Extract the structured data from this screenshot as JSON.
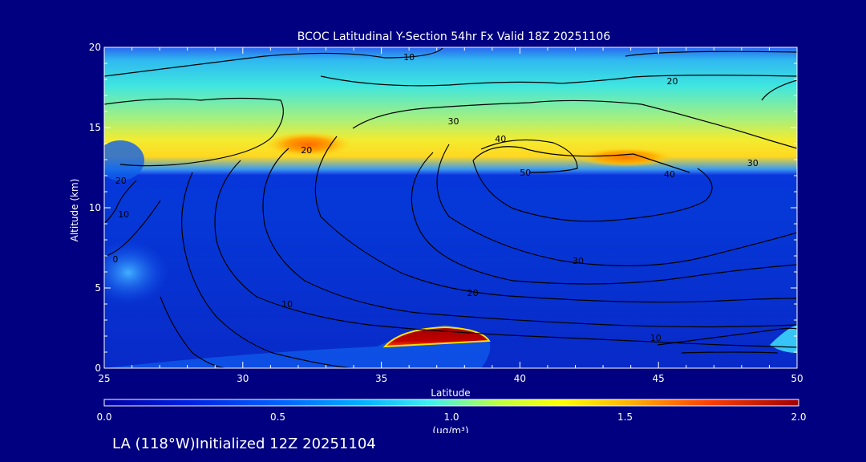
{
  "chart_data": {
    "type": "heatmap",
    "title": "BCOC Latitudinal Y-Section 54hr  Fx Valid 18Z 20251106",
    "xlabel": "Latitude",
    "ylabel": "Altitude (km)",
    "xlim": [
      25,
      50
    ],
    "ylim": [
      0,
      20
    ],
    "x_ticks": [
      25,
      30,
      35,
      40,
      45,
      50
    ],
    "y_ticks": [
      0,
      5,
      10,
      15,
      20
    ],
    "colorbar": {
      "range": [
        0.0,
        2.0
      ],
      "ticks": [
        "0.0",
        "0.5",
        "1.0",
        "1.5",
        "2.0"
      ],
      "unit_label": "(ug/m³)"
    },
    "field_description_regions": [
      {
        "lat": 33.0,
        "alt": 13.9,
        "value": 1.7
      },
      {
        "lat": 43.5,
        "alt": 13.0,
        "value": 1.6
      },
      {
        "lat": 37.5,
        "alt": 2.0,
        "value": 2.0
      },
      {
        "lat": 40.0,
        "alt": 15.0,
        "value": 1.2
      },
      {
        "lat": 28.0,
        "alt": 8.0,
        "value": 0.3
      }
    ],
    "contour_labels": [
      {
        "text": "10",
        "lat": 36.0,
        "alt": 19.4
      },
      {
        "text": "20",
        "lat": 45.5,
        "alt": 17.9
      },
      {
        "text": "30",
        "lat": 37.6,
        "alt": 15.4
      },
      {
        "text": "40",
        "lat": 39.3,
        "alt": 14.3
      },
      {
        "text": "50",
        "lat": 40.2,
        "alt": 12.2
      },
      {
        "text": "40",
        "lat": 45.4,
        "alt": 12.1
      },
      {
        "text": "30",
        "lat": 48.4,
        "alt": 12.8
      },
      {
        "text": "20",
        "lat": 32.3,
        "alt": 13.6
      },
      {
        "text": "20",
        "lat": 25.6,
        "alt": 11.7
      },
      {
        "text": "10",
        "lat": 25.7,
        "alt": 9.6
      },
      {
        "text": "0",
        "lat": 25.4,
        "alt": 6.8
      },
      {
        "text": "30",
        "lat": 42.1,
        "alt": 6.7
      },
      {
        "text": "20",
        "lat": 38.3,
        "alt": 4.7
      },
      {
        "text": "10",
        "lat": 31.6,
        "alt": 4.0
      },
      {
        "text": "10",
        "lat": 44.9,
        "alt": 1.9
      }
    ]
  },
  "footer_text": "LA (118°W)Initialized 12Z 20251104"
}
